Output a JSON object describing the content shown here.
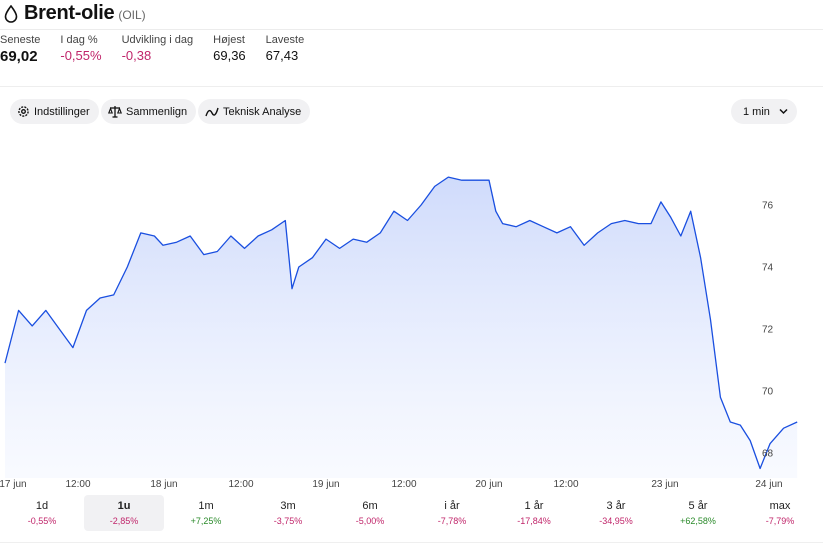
{
  "header": {
    "title": "Brent-olie",
    "ticker": "(OIL)"
  },
  "stats": [
    {
      "label": "Seneste",
      "value": "69,02",
      "tone": "plain"
    },
    {
      "label": "I dag %",
      "value": "-0,55%",
      "tone": "neg"
    },
    {
      "label": "Udvikling i dag",
      "value": "-0,38",
      "tone": "neg"
    },
    {
      "label": "Højest",
      "value": "69,36",
      "tone": "plain"
    },
    {
      "label": "Laveste",
      "value": "67,43",
      "tone": "plain"
    }
  ],
  "toolbar": {
    "settings_label": "Indstillinger",
    "compare_label": "Sammenlign",
    "technical_label": "Teknisk Analyse",
    "interval_label": "1 min"
  },
  "icons": {
    "title_icon": "drop-icon",
    "settings_icon": "gear-icon",
    "compare_icon": "scale-icon",
    "technical_icon": "line-chart-icon",
    "interval_icon": "chevron-down-icon"
  },
  "colors": {
    "line": "#1a4fe0",
    "fill_top": "#cdd9fb",
    "negative": "#c0256a",
    "positive": "#2a8a2a"
  },
  "chart_data": {
    "type": "area",
    "x_tick_labels": [
      "17 jun",
      "12:00",
      "18 jun",
      "12:00",
      "19 jun",
      "12:00",
      "20 jun",
      "12:00",
      "23 jun",
      "24 jun"
    ],
    "y_tick_labels": [
      "76",
      "74",
      "72",
      "70",
      "68"
    ],
    "ylim": [
      67,
      78
    ],
    "grid": false,
    "series": [
      {
        "name": "",
        "points": [
          [
            "17 jun 00:00",
            70.9
          ],
          [
            "17 jun 02:00",
            72.6
          ],
          [
            "17 jun 04:00",
            72.1
          ],
          [
            "17 jun 06:00",
            72.6
          ],
          [
            "17 jun 08:00",
            72.0
          ],
          [
            "17 jun 10:00",
            71.4
          ],
          [
            "17 jun 12:00",
            72.6
          ],
          [
            "17 jun 14:00",
            73.0
          ],
          [
            "17 jun 16:00",
            73.1
          ],
          [
            "17 jun 18:00",
            74.0
          ],
          [
            "17 jun 20:00",
            75.1
          ],
          [
            "17 jun 22:00",
            75.0
          ],
          [
            "18 jun 00:00",
            74.7
          ],
          [
            "18 jun 02:00",
            74.8
          ],
          [
            "18 jun 04:00",
            75.0
          ],
          [
            "18 jun 06:00",
            74.4
          ],
          [
            "18 jun 08:00",
            74.5
          ],
          [
            "18 jun 10:00",
            75.0
          ],
          [
            "18 jun 12:00",
            74.6
          ],
          [
            "18 jun 14:00",
            75.0
          ],
          [
            "18 jun 16:00",
            75.2
          ],
          [
            "18 jun 18:00",
            75.5
          ],
          [
            "18 jun 19:00",
            73.3
          ],
          [
            "18 jun 20:00",
            74.0
          ],
          [
            "18 jun 22:00",
            74.3
          ],
          [
            "19 jun 00:00",
            74.9
          ],
          [
            "19 jun 02:00",
            74.6
          ],
          [
            "19 jun 04:00",
            74.9
          ],
          [
            "19 jun 06:00",
            74.8
          ],
          [
            "19 jun 08:00",
            75.1
          ],
          [
            "19 jun 10:00",
            75.8
          ],
          [
            "19 jun 12:00",
            75.5
          ],
          [
            "19 jun 14:00",
            76.0
          ],
          [
            "19 jun 16:00",
            76.6
          ],
          [
            "19 jun 18:00",
            76.9
          ],
          [
            "19 jun 20:00",
            76.8
          ],
          [
            "19 jun 22:00",
            76.8
          ],
          [
            "20 jun 00:00",
            76.8
          ],
          [
            "20 jun 01:00",
            75.8
          ],
          [
            "20 jun 02:00",
            75.4
          ],
          [
            "20 jun 04:00",
            75.3
          ],
          [
            "20 jun 06:00",
            75.5
          ],
          [
            "20 jun 08:00",
            75.3
          ],
          [
            "20 jun 10:00",
            75.1
          ],
          [
            "20 jun 12:00",
            75.3
          ],
          [
            "20 jun 14:00",
            74.7
          ],
          [
            "20 jun 16:00",
            75.1
          ],
          [
            "20 jun 18:00",
            75.4
          ],
          [
            "20 jun 20:00",
            75.5
          ],
          [
            "20 jun 22:00",
            75.4
          ],
          [
            "23 jun 00:00",
            75.4
          ],
          [
            "23 jun 02:00",
            76.1
          ],
          [
            "23 jun 04:00",
            75.6
          ],
          [
            "23 jun 06:00",
            75.0
          ],
          [
            "23 jun 08:00",
            75.8
          ],
          [
            "23 jun 10:00",
            74.3
          ],
          [
            "23 jun 12:00",
            72.3
          ],
          [
            "23 jun 14:00",
            69.8
          ],
          [
            "23 jun 16:00",
            69.0
          ],
          [
            "23 jun 18:00",
            68.9
          ],
          [
            "23 jun 20:00",
            68.4
          ],
          [
            "23 jun 22:00",
            67.5
          ],
          [
            "24 jun 00:00",
            68.3
          ],
          [
            "24 jun 02:00",
            68.8
          ],
          [
            "24 jun 04:00",
            69.0
          ]
        ]
      }
    ]
  },
  "periods": [
    {
      "label": "1d",
      "change": "-0,55%",
      "tone": "neg",
      "active": false
    },
    {
      "label": "1u",
      "change": "-2,85%",
      "tone": "neg",
      "active": true
    },
    {
      "label": "1m",
      "change": "+7,25%",
      "tone": "pos",
      "active": false
    },
    {
      "label": "3m",
      "change": "-3,75%",
      "tone": "neg",
      "active": false
    },
    {
      "label": "6m",
      "change": "-5,00%",
      "tone": "neg",
      "active": false
    },
    {
      "label": "i år",
      "change": "-7,78%",
      "tone": "neg",
      "active": false
    },
    {
      "label": "1 år",
      "change": "-17,84%",
      "tone": "neg",
      "active": false
    },
    {
      "label": "3 år",
      "change": "-34,95%",
      "tone": "neg",
      "active": false
    },
    {
      "label": "5 år",
      "change": "+62,58%",
      "tone": "pos",
      "active": false
    },
    {
      "label": "max",
      "change": "-7,79%",
      "tone": "neg",
      "active": false
    }
  ]
}
